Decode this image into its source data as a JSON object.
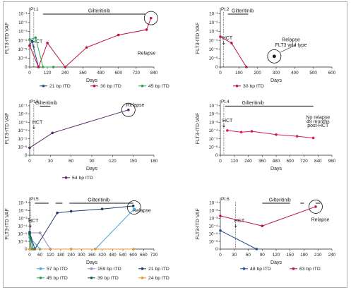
{
  "chart_data": [
    {
      "type": "line",
      "panel_label": "Pt.1",
      "xlabel": "Days",
      "ylabel": "FLT3-ITD VAF",
      "xlim": [
        0,
        840
      ],
      "xticks": [
        0,
        120,
        240,
        360,
        480,
        600,
        720,
        840
      ],
      "ylim_log10": [
        -6,
        -1
      ],
      "yticks": [
        "10⁻¹",
        "10⁻²",
        "10⁻³",
        "10⁻⁴",
        "10⁻⁵",
        "10⁻⁶",
        "0"
      ],
      "annotations": [
        {
          "text": "HCT",
          "x": 28,
          "y_log10": -4.3
        },
        {
          "text": "Gilteritinib",
          "x": 470,
          "y_log10": -0.8
        },
        {
          "text": "Relapse",
          "x": 790,
          "y_log10": -5.6
        }
      ],
      "gilteritinib_bars": [
        [
          90,
          780
        ]
      ],
      "hct_day": 28,
      "series": [
        {
          "name": "21 bp ITD",
          "color": "#1f4e8c",
          "points": [
            [
              0,
              -4.6
            ],
            [
              15,
              -4.1
            ],
            [
              60,
              "zero"
            ]
          ]
        },
        {
          "name": "30 bp ITD",
          "color": "#c0143c",
          "points": [
            [
              0,
              -4.6
            ],
            [
              60,
              "zero"
            ],
            [
              120,
              -4.3
            ],
            [
              240,
              "zero"
            ],
            [
              385,
              -4.8
            ],
            [
              600,
              -3.4
            ],
            [
              790,
              -2.8
            ],
            [
              820,
              -1.5
            ]
          ]
        },
        {
          "name": "45 bp ITD",
          "color": "#2aa84a",
          "points": [
            [
              0,
              -3.9
            ],
            [
              40,
              -3.7
            ],
            [
              90,
              "zero"
            ],
            [
              160,
              "zero"
            ]
          ]
        }
      ],
      "relapse_circle": {
        "x": 820,
        "y_log10": -1.5
      }
    },
    {
      "type": "line",
      "panel_label": "Pt.2",
      "xlabel": "Days",
      "ylabel": "FLT3-ITD VAF",
      "xlim": [
        0,
        600
      ],
      "xticks": [
        0,
        100,
        200,
        300,
        400,
        500,
        600
      ],
      "ylim_log10": [
        -6,
        -1
      ],
      "yticks": [
        "10⁻¹",
        "10⁻²",
        "10⁻³",
        "10⁻⁴",
        "10⁻⁵",
        "10⁻⁶",
        "0"
      ],
      "annotations": [
        {
          "text": "HCT",
          "x": 18,
          "y_log10": -3.9
        },
        {
          "text": "Gilteritinib",
          "x": 120,
          "y_log10": -0.8
        },
        {
          "text": "Relapse",
          "x": 380,
          "y_log10": -4.1
        },
        {
          "text": "FLT3 wild type",
          "x": 380,
          "y_log10": -4.7
        }
      ],
      "gilteritinib_bars": [
        [
          40,
          150
        ]
      ],
      "hct_day": 18,
      "series": [
        {
          "name": "30 bp ITD",
          "color": "#c0143c",
          "points": [
            [
              0,
              -3.6
            ],
            [
              60,
              -4.3
            ],
            [
              140,
              "zero"
            ]
          ]
        }
      ],
      "wild_type_point": {
        "x": 290,
        "y_log10": -5.8
      },
      "relapse_circle": {
        "x": 290,
        "y_log10": -5.8
      }
    },
    {
      "type": "line",
      "panel_label": "Pt.3",
      "xlabel": "Days",
      "ylabel": "FLT3-ITD VAF",
      "xlim": [
        0,
        180
      ],
      "xticks": [
        0,
        30,
        60,
        90,
        120,
        150,
        180
      ],
      "ylim_log10": [
        -6,
        -1
      ],
      "yticks": [
        "10⁻¹",
        "10⁻²",
        "10⁻³",
        "10⁻⁴",
        "10⁻⁵",
        "10⁻⁶",
        "0"
      ],
      "annotations": [
        {
          "text": "Gilteritinib",
          "x": 24,
          "y_log10": -1.0
        },
        {
          "text": "HCT",
          "x": 6,
          "y_log10": -3.2
        },
        {
          "text": "Relapse",
          "x": 153,
          "y_log10": -1.1
        }
      ],
      "gilteritinib_bars": [
        [
          15,
          30
        ]
      ],
      "hct_day": 6,
      "series": [
        {
          "name": "54 bp ITD",
          "color": "#5c2a6e",
          "points": [
            [
              0,
              -6.1
            ],
            [
              33,
              -4.3
            ],
            [
              143,
              -1.5
            ]
          ]
        }
      ],
      "relapse_circle": {
        "x": 143,
        "y_log10": -1.5
      }
    },
    {
      "type": "line",
      "panel_label": "Pt.4",
      "xlabel": "Days",
      "ylabel": "FLT3-ITD VAF",
      "xlim": [
        0,
        960
      ],
      "xticks": [
        0,
        120,
        240,
        360,
        480,
        600,
        720,
        840,
        960
      ],
      "ylim_log10": [
        -6,
        -1
      ],
      "yticks": [
        "10⁻¹",
        "10⁻²",
        "10⁻³",
        "10⁻⁴",
        "10⁻⁵",
        "10⁻⁶",
        "0"
      ],
      "annotations": [
        {
          "text": "Gilteritinib",
          "x": 280,
          "y_log10": -2.0
        },
        {
          "text": "HCT",
          "x": 30,
          "y_log10": -3.0
        },
        {
          "text": "No relapse",
          "x": 840,
          "y_log10": -2.6
        },
        {
          "text": "49 months",
          "x": 840,
          "y_log10": -3.1
        },
        {
          "text": "post-HCT",
          "x": 840,
          "y_log10": -3.6
        }
      ],
      "gilteritinib_bars": [
        [
          40,
          800
        ]
      ],
      "hct_day": 30,
      "series": [
        {
          "name": "",
          "color": "#d81b60",
          "points": [
            [
              60,
              -4.0
            ],
            [
              180,
              -4.2
            ],
            [
              270,
              -4.1
            ],
            [
              480,
              -4.5
            ],
            [
              660,
              -4.7
            ],
            [
              800,
              -4.9
            ]
          ]
        }
      ]
    },
    {
      "type": "line",
      "panel_label": "Pt.5",
      "xlabel": "Days",
      "ylabel": "FLT3-ITD VAF",
      "xlim": [
        0,
        720
      ],
      "xticks": [
        0,
        60,
        120,
        180,
        240,
        300,
        360,
        420,
        480,
        540,
        600,
        660,
        720
      ],
      "ylim_log10": [
        -6,
        -1
      ],
      "yticks": [
        "10⁻¹",
        "10⁻²",
        "10⁻³",
        "10⁻⁴",
        "10⁻⁵",
        "10⁻⁶",
        "0"
      ],
      "annotations": [
        {
          "text": "Gilteritinib",
          "x": 400,
          "y_log10": -0.9
        },
        {
          "text": "HCT",
          "x": 0,
          "y_log10": -3.5
        },
        {
          "text": "Relapse",
          "x": 650,
          "y_log10": -2.2
        }
      ],
      "gilteritinib_bars": [
        [
          30,
          110
        ],
        [
          150,
          190
        ],
        [
          230,
          600
        ]
      ],
      "hct_day": 4,
      "series": [
        {
          "name": "57 bp ITD",
          "color": "#3aa9dc",
          "points": [
            [
              0,
              -5.5
            ],
            [
              60,
              "zero"
            ],
            [
              240,
              "zero"
            ],
            [
              380,
              "zero"
            ],
            [
              605,
              -1.8
            ]
          ]
        },
        {
          "name": "159 bp ITD",
          "color": "#9b86c4",
          "points": [
            [
              0,
              -4.9
            ],
            [
              60,
              -4.9
            ],
            [
              120,
              "zero"
            ]
          ]
        },
        {
          "name": "21 bp ITD",
          "color": "#1a3a6b",
          "points": [
            [
              0,
              -4.8
            ],
            [
              30,
              "zero"
            ],
            [
              160,
              -2.3
            ],
            [
              240,
              -2.1
            ],
            [
              420,
              -1.8
            ],
            [
              600,
              -1.4
            ]
          ]
        },
        {
          "name": "45 bp ITD",
          "color": "#2aa84a",
          "points": [
            [
              0,
              -5.2
            ],
            [
              10,
              "zero"
            ]
          ]
        },
        {
          "name": "39 bp ITD",
          "color": "#0f5e58",
          "points": [
            [
              0,
              -5.0
            ],
            [
              20,
              "zero"
            ]
          ]
        },
        {
          "name": "24 bp ITD",
          "color": "#f0962a",
          "points": [
            [
              0,
              "zero"
            ],
            [
              240,
              "zero"
            ],
            [
              380,
              "zero"
            ],
            [
              600,
              "zero"
            ]
          ]
        }
      ],
      "relapse_circle": {
        "x": 605,
        "y_log10": -1.6
      }
    },
    {
      "type": "line",
      "panel_label": "Pt.6",
      "xlabel": "Days",
      "ylabel": "FLT3-ITD VAF",
      "xlim": [
        0,
        240
      ],
      "xticks": [
        0,
        30,
        60,
        90,
        120,
        150,
        180,
        210,
        240
      ],
      "ylim_log10": [
        -6,
        -1
      ],
      "yticks": [
        "10⁻¹",
        "10⁻²",
        "10⁻³",
        "10⁻⁴",
        "10⁻⁵",
        "10⁻⁶",
        "0"
      ],
      "annotations": [
        {
          "text": "HCT",
          "x": 33,
          "y_log10": -3.5
        },
        {
          "text": "Gilteritinib",
          "x": 128,
          "y_log10": -1.8
        },
        {
          "text": "Relapse",
          "x": 215,
          "y_log10": -3.4
        }
      ],
      "gilteritinib_bars": [
        [
          90,
          150
        ],
        [
          172,
          180
        ],
        [
          205,
          215
        ]
      ],
      "hct_day": 33,
      "series": [
        {
          "name": "48 bp ITD",
          "color": "#1f4e8c",
          "points": [
            [
              0,
              -4.6
            ],
            [
              78,
              "zero"
            ]
          ]
        },
        {
          "name": "63 bp ITD",
          "color": "#c0143c",
          "points": [
            [
              0,
              -2.7
            ],
            [
              90,
              -4.0
            ],
            [
              205,
              -1.5
            ]
          ]
        }
      ],
      "relapse_circle": {
        "x": 205,
        "y_log10": -1.5
      }
    }
  ]
}
